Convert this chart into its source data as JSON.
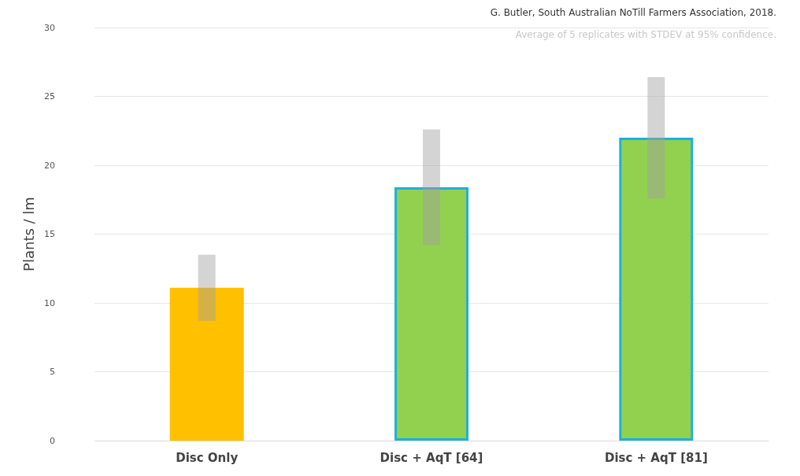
{
  "chart_data": {
    "type": "bar",
    "ylabel": "Plants / lm",
    "categories": [
      "Disc Only",
      "Disc + AqT [64]",
      "Disc + AqT [81]"
    ],
    "values": [
      11.1,
      18.4,
      22.0
    ],
    "colors": [
      "#ffc000",
      "#92d050",
      "#92d050"
    ],
    "errors": [
      [
        8.7,
        13.5
      ],
      [
        14.2,
        22.6
      ],
      [
        17.6,
        26.4
      ]
    ],
    "ylim": [
      0,
      30
    ],
    "yticks": [
      0,
      5,
      10,
      15,
      20,
      25,
      30
    ],
    "grid": "y",
    "annotations": [
      "G. Butler, South Australian NoTill Farmers Association, 2018.",
      "Average of 5 replicates with STDEV at 95% confidence."
    ]
  }
}
